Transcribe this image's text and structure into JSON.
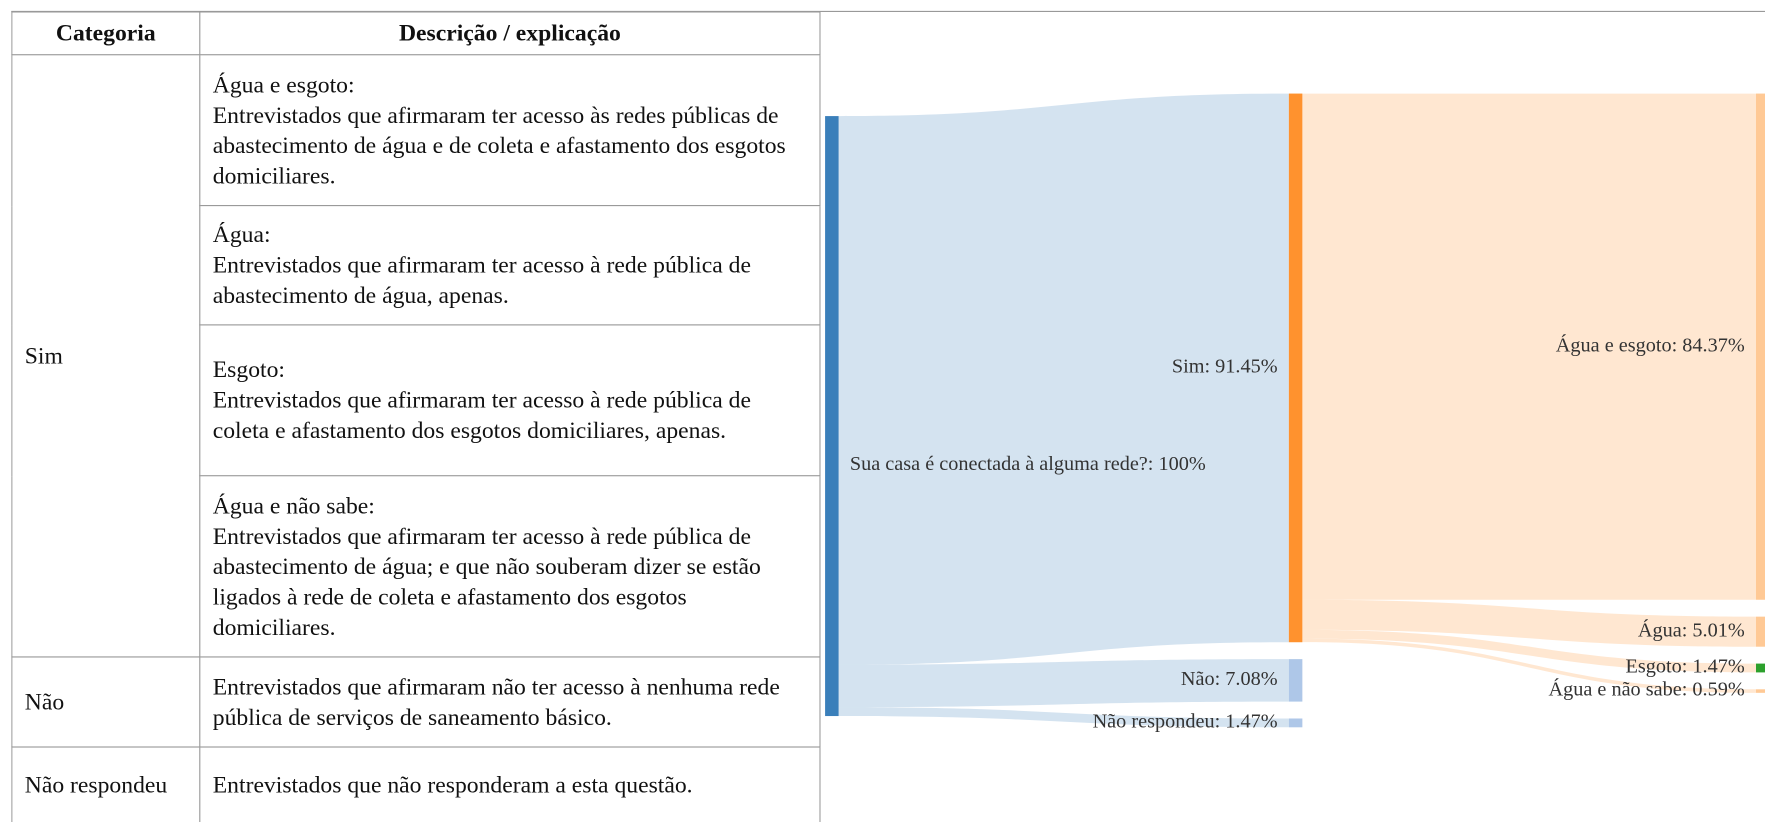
{
  "table": {
    "header": [
      "Categoria",
      "Descrição / explicação"
    ],
    "rows": [
      {
        "category": "Sim",
        "items": [
          {
            "title": "Água e esgoto:",
            "text": "Entrevistados que afirmaram ter acesso às redes públicas de abastecimento de água e de coleta e afastamento dos esgotos domiciliares."
          },
          {
            "title": "Água:",
            "text": "Entrevistados que afirmaram ter acesso à rede pública de abastecimento de água, apenas."
          },
          {
            "title": "Esgoto:",
            "text": "Entrevistados que afirmaram ter acesso à rede pública de coleta e afastamento dos esgotos domiciliares, apenas."
          },
          {
            "title": "Água e não sabe:",
            "text": "Entrevistados que afirmaram ter acesso à rede pública de abastecimento de água; e que não souberam dizer se estão ligados à rede de coleta e afastamento dos esgotos domiciliares."
          }
        ]
      },
      {
        "category": "Não",
        "items": [
          {
            "text": "Entrevistados que afirmaram não ter acesso à nenhuma rede pública de serviços de saneamento básico."
          }
        ]
      },
      {
        "category": "Não respondeu",
        "items": [
          {
            "text": "Entrevistados que não responderam a esta questão."
          }
        ]
      }
    ]
  },
  "chart_data": {
    "type": "sankey",
    "nodes": [
      {
        "value": 100,
        "value_label": "Sua casa é conectada à alguma rede?: 100%",
        "color": "#3a7fba"
      },
      {
        "value": 91.45,
        "value_label": "Sim: 91.45%",
        "color": "#ff922e"
      },
      {
        "value": 7.08,
        "value_label": "Não: 7.08%",
        "color": "#aec7e8"
      },
      {
        "value": 1.47,
        "value_label": "Não respondeu: 1.47%",
        "color": "#aec7e8"
      },
      {
        "value": 84.37,
        "value_label": "Água e esgoto: 84.37%",
        "color": "#ffc995"
      },
      {
        "value": 5.01,
        "value_label": "Água: 5.01%",
        "color": "#ffc995"
      },
      {
        "value": 1.47,
        "value_label": "Esgoto: 1.47%",
        "color": "#2ca02c"
      },
      {
        "value": 0.59,
        "value_label": "Água e não sabe: 0.59%",
        "color": "#ffc995"
      }
    ],
    "links": [
      {
        "source": 0,
        "target": 1,
        "value": 91.45
      },
      {
        "source": 0,
        "target": 2,
        "value": 7.08
      },
      {
        "source": 0,
        "target": 3,
        "value": 1.47
      },
      {
        "source": 1,
        "target": 4,
        "value": 84.37
      },
      {
        "source": 1,
        "target": 5,
        "value": 5.01
      },
      {
        "source": 1,
        "target": 6,
        "value": 1.47
      },
      {
        "source": 1,
        "target": 7,
        "value": 0.59
      }
    ]
  }
}
